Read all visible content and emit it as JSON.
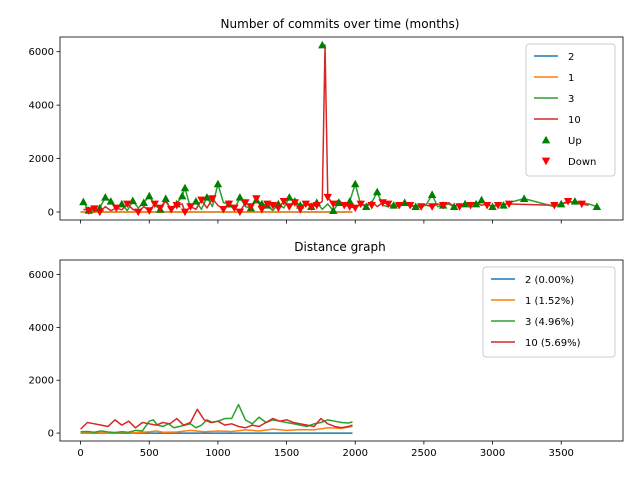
{
  "chart_data": [
    {
      "type": "line",
      "title": "Number of commits over time (months)",
      "xlabel": "",
      "ylabel": "",
      "xlim": [
        -150,
        3950
      ],
      "ylim": [
        -300,
        6550
      ],
      "xticks": [
        0,
        500,
        1000,
        1500,
        2000,
        2500,
        3000,
        3500
      ],
      "xtick_labels_visible": false,
      "yticks": [
        0,
        2000,
        4000,
        6000
      ],
      "legend_position": "top-right",
      "colors": {
        "blue": "#1f77b4",
        "orange": "#ff7f0e",
        "green": "#2ca02c",
        "red": "#d62728"
      },
      "series": [
        {
          "name": "2",
          "color": "#1f77b4",
          "x": [
            0,
            1980
          ],
          "y": [
            0,
            0
          ]
        },
        {
          "name": "1",
          "color": "#ff7f0e",
          "x": [
            0,
            1980
          ],
          "y": [
            0,
            0
          ]
        },
        {
          "name": "3",
          "color": "#2ca02c",
          "x": [
            20,
            60,
            100,
            140,
            180,
            220,
            260,
            300,
            340,
            380,
            420,
            460,
            500,
            540,
            580,
            620,
            660,
            700,
            740,
            760,
            800,
            840,
            880,
            920,
            960,
            1000,
            1040,
            1080,
            1120,
            1160,
            1200,
            1240,
            1280,
            1320,
            1360,
            1400,
            1440,
            1480,
            1520,
            1560,
            1600,
            1640,
            1680,
            1720,
            1760,
            1800,
            1840,
            1880,
            1920,
            1960,
            2000,
            2040,
            2080,
            2120,
            2160,
            2200,
            2240,
            2280,
            2320,
            2360,
            2400,
            2440,
            2480,
            2520,
            2560,
            2600,
            2640,
            2680,
            2720,
            2760,
            2800,
            2840,
            2880,
            2920,
            2960,
            3000,
            3040,
            3080,
            3120,
            3230,
            3450,
            3500,
            3550,
            3600,
            3650,
            3700,
            3760
          ],
          "y": [
            380,
            60,
            20,
            150,
            550,
            400,
            80,
            300,
            50,
            420,
            150,
            350,
            600,
            250,
            100,
            500,
            20,
            300,
            600,
            900,
            150,
            400,
            100,
            550,
            200,
            1050,
            350,
            300,
            80,
            550,
            200,
            150,
            450,
            300,
            250,
            50,
            300,
            150,
            550,
            400,
            250,
            300,
            200,
            350,
            100,
            300,
            50,
            350,
            280,
            400,
            1050,
            280,
            200,
            350,
            750,
            250,
            200,
            300,
            250,
            350,
            200,
            250,
            150,
            300,
            650,
            200,
            250,
            300,
            200,
            300,
            250,
            350,
            300,
            450,
            280,
            200,
            300,
            250,
            350,
            500,
            200,
            300,
            350,
            400,
            350,
            300,
            200
          ]
        },
        {
          "name": "10",
          "color": "#d62728",
          "x": [
            20,
            60,
            100,
            140,
            180,
            220,
            260,
            300,
            340,
            380,
            420,
            460,
            500,
            540,
            580,
            620,
            660,
            700,
            740,
            760,
            800,
            840,
            880,
            920,
            960,
            1000,
            1040,
            1080,
            1120,
            1160,
            1200,
            1240,
            1280,
            1320,
            1360,
            1400,
            1440,
            1480,
            1520,
            1560,
            1600,
            1640,
            1680,
            1720,
            1760,
            1780,
            1800,
            1840,
            1880,
            1920,
            1960,
            2000,
            2040,
            2080,
            2120,
            2160,
            2200,
            2240,
            2280,
            2320,
            2360,
            2400,
            2440,
            2480,
            2520,
            2560,
            2600,
            2640,
            2680,
            2720,
            2760,
            2800,
            2840,
            2880,
            2920,
            2960,
            3000,
            3040,
            3080,
            3120,
            3450,
            3500,
            3550,
            3600,
            3650,
            3700
          ],
          "y": [
            100,
            50,
            120,
            0,
            200,
            50,
            150,
            80,
            300,
            100,
            0,
            200,
            50,
            300,
            150,
            400,
            100,
            250,
            300,
            0,
            200,
            100,
            450,
            150,
            500,
            250,
            100,
            300,
            150,
            0,
            350,
            200,
            500,
            100,
            300,
            250,
            150,
            400,
            200,
            350,
            100,
            300,
            200,
            250,
            400,
            6250,
            550,
            300,
            450,
            250,
            200,
            150,
            300,
            250,
            400,
            200,
            350,
            300,
            150,
            250,
            300,
            250,
            200,
            300,
            250,
            200,
            300,
            250,
            350,
            200,
            300,
            250,
            300,
            350,
            250,
            300,
            200,
            250,
            300,
            300,
            250,
            300,
            400,
            350,
            300,
            250
          ]
        },
        {
          "name": "Up",
          "color": "#008000",
          "marker": "triangle-up",
          "x": [
            20,
            60,
            140,
            180,
            220,
            300,
            380,
            460,
            500,
            580,
            620,
            700,
            740,
            760,
            840,
            920,
            1000,
            1080,
            1160,
            1240,
            1280,
            1320,
            1360,
            1440,
            1520,
            1560,
            1600,
            1680,
            1720,
            1760,
            1840,
            1880,
            1960,
            2000,
            2080,
            2160,
            2280,
            2360,
            2440,
            2560,
            2640,
            2720,
            2800,
            2880,
            2920,
            3000,
            3080,
            3230,
            3500,
            3600,
            3760
          ],
          "y": [
            380,
            60,
            150,
            550,
            400,
            300,
            420,
            350,
            600,
            100,
            500,
            300,
            600,
            900,
            400,
            550,
            1050,
            300,
            550,
            150,
            450,
            300,
            250,
            300,
            550,
            400,
            250,
            200,
            350,
            6250,
            50,
            350,
            400,
            1050,
            200,
            750,
            250,
            350,
            200,
            650,
            250,
            200,
            300,
            300,
            450,
            200,
            250,
            500,
            300,
            400,
            200
          ]
        },
        {
          "name": "Down",
          "color": "#ff0000",
          "marker": "triangle-down",
          "x": [
            60,
            100,
            140,
            260,
            340,
            420,
            500,
            540,
            580,
            660,
            700,
            760,
            800,
            880,
            960,
            1040,
            1080,
            1120,
            1160,
            1200,
            1240,
            1280,
            1320,
            1360,
            1400,
            1440,
            1480,
            1520,
            1560,
            1600,
            1640,
            1680,
            1720,
            1800,
            1840,
            1920,
            1960,
            2000,
            2040,
            2120,
            2200,
            2240,
            2320,
            2400,
            2480,
            2560,
            2640,
            2760,
            2840,
            2960,
            3040,
            3120,
            3450,
            3550,
            3650
          ],
          "y": [
            50,
            120,
            0,
            150,
            300,
            0,
            50,
            300,
            150,
            100,
            250,
            0,
            200,
            450,
            500,
            100,
            300,
            150,
            0,
            350,
            200,
            500,
            100,
            300,
            250,
            150,
            400,
            200,
            350,
            100,
            300,
            200,
            250,
            550,
            300,
            250,
            200,
            150,
            300,
            250,
            350,
            300,
            250,
            250,
            200,
            200,
            250,
            200,
            250,
            250,
            250,
            300,
            250,
            400,
            300
          ]
        }
      ]
    },
    {
      "type": "line",
      "title": "Distance graph",
      "xlabel": "",
      "ylabel": "",
      "xlim": [
        -150,
        3950
      ],
      "ylim": [
        -300,
        6550
      ],
      "xticks": [
        0,
        500,
        1000,
        1500,
        2000,
        2500,
        3000,
        3500
      ],
      "yticks": [
        0,
        2000,
        4000,
        6000
      ],
      "legend_position": "top-right",
      "series": [
        {
          "name": "2 (0.00%)",
          "color": "#1f77b4",
          "x": [
            0,
            1980
          ],
          "y": [
            0,
            0
          ]
        },
        {
          "name": "1 (1.52%)",
          "color": "#ff7f0e",
          "x": [
            0,
            100,
            200,
            300,
            400,
            500,
            550,
            600,
            700,
            800,
            900,
            1000,
            1100,
            1200,
            1300,
            1400,
            1500,
            1600,
            1700,
            1800,
            1900,
            1980
          ],
          "y": [
            0,
            20,
            0,
            30,
            10,
            50,
            80,
            30,
            40,
            100,
            50,
            80,
            60,
            120,
            80,
            150,
            100,
            130,
            120,
            200,
            180,
            250
          ]
        },
        {
          "name": "3 (4.96%)",
          "color": "#2ca02c",
          "x": [
            0,
            50,
            100,
            150,
            200,
            250,
            300,
            350,
            400,
            450,
            500,
            530,
            560,
            600,
            640,
            680,
            720,
            760,
            800,
            840,
            880,
            920,
            960,
            1000,
            1050,
            1100,
            1150,
            1200,
            1250,
            1300,
            1350,
            1400,
            1450,
            1500,
            1550,
            1600,
            1650,
            1700,
            1750,
            1800,
            1850,
            1900,
            1950,
            1980
          ],
          "y": [
            50,
            60,
            30,
            80,
            40,
            20,
            50,
            30,
            100,
            80,
            450,
            500,
            300,
            250,
            350,
            200,
            250,
            300,
            350,
            200,
            300,
            500,
            400,
            450,
            550,
            550,
            1080,
            500,
            350,
            600,
            400,
            500,
            450,
            400,
            350,
            300,
            250,
            350,
            400,
            500,
            450,
            400,
            380,
            420
          ]
        },
        {
          "name": "10 (5.69%)",
          "color": "#d62728",
          "x": [
            0,
            50,
            100,
            150,
            200,
            250,
            300,
            350,
            400,
            450,
            500,
            550,
            600,
            650,
            700,
            750,
            800,
            850,
            900,
            950,
            1000,
            1050,
            1100,
            1150,
            1200,
            1250,
            1300,
            1350,
            1400,
            1450,
            1500,
            1550,
            1600,
            1650,
            1700,
            1750,
            1800,
            1850,
            1900,
            1950,
            1980
          ],
          "y": [
            150,
            400,
            350,
            300,
            250,
            500,
            300,
            450,
            200,
            400,
            350,
            300,
            400,
            350,
            550,
            300,
            400,
            900,
            500,
            400,
            450,
            300,
            350,
            250,
            200,
            300,
            250,
            400,
            550,
            450,
            500,
            400,
            350,
            300,
            250,
            550,
            350,
            250,
            200,
            250,
            300
          ]
        }
      ]
    }
  ]
}
